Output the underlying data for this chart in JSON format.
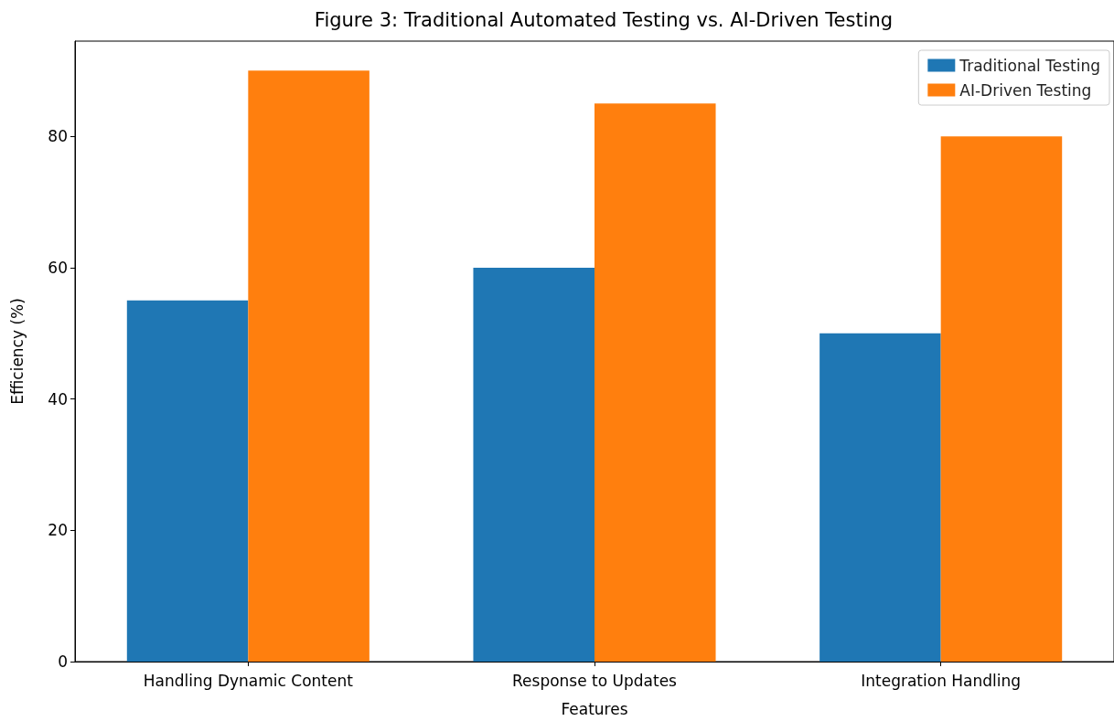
{
  "chart_data": {
    "type": "bar",
    "title": "Figure 3: Traditional Automated Testing vs. AI-Driven Testing",
    "xlabel": "Features",
    "ylabel": "Efficiency (%)",
    "categories": [
      "Handling Dynamic Content",
      "Response to Updates",
      "Integration Handling"
    ],
    "series": [
      {
        "name": "Traditional Testing",
        "color": "#1f77b4",
        "values": [
          55,
          60,
          50
        ]
      },
      {
        "name": "AI-Driven Testing",
        "color": "#ff7f0e",
        "values": [
          90,
          85,
          80
        ]
      }
    ],
    "ylim": [
      0,
      94.5
    ],
    "yticks": [
      0,
      20,
      40,
      60,
      80
    ],
    "grid": false,
    "legend": "top right"
  }
}
